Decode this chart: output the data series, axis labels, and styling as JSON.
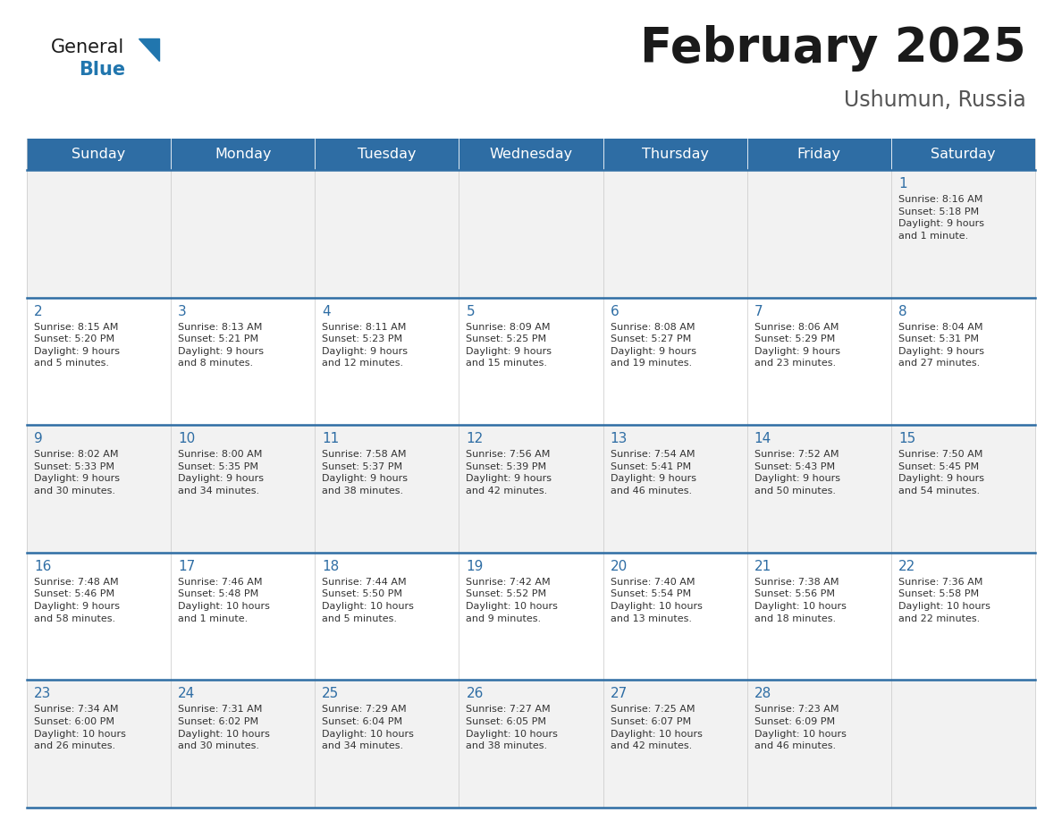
{
  "title": "February 2025",
  "subtitle": "Ushumun, Russia",
  "header_color": "#2E6DA4",
  "header_text_color": "#FFFFFF",
  "days_of_week": [
    "Sunday",
    "Monday",
    "Tuesday",
    "Wednesday",
    "Thursday",
    "Friday",
    "Saturday"
  ],
  "background_color": "#FFFFFF",
  "cell_bg_row0": "#F2F2F2",
  "cell_bg_row1": "#FFFFFF",
  "cell_bg_row2": "#F2F2F2",
  "cell_bg_row3": "#FFFFFF",
  "cell_bg_row4": "#F2F2F2",
  "separator_color": "#2E6DA4",
  "day_number_color": "#2E6DA4",
  "text_color": "#333333",
  "title_color": "#1a1a1a",
  "subtitle_color": "#555555",
  "logo_general_color": "#1a1a1a",
  "logo_blue_color": "#2176AE",
  "calendar": [
    [
      {
        "day": null,
        "info": null
      },
      {
        "day": null,
        "info": null
      },
      {
        "day": null,
        "info": null
      },
      {
        "day": null,
        "info": null
      },
      {
        "day": null,
        "info": null
      },
      {
        "day": null,
        "info": null
      },
      {
        "day": "1",
        "info": "Sunrise: 8:16 AM\nSunset: 5:18 PM\nDaylight: 9 hours\nand 1 minute."
      }
    ],
    [
      {
        "day": "2",
        "info": "Sunrise: 8:15 AM\nSunset: 5:20 PM\nDaylight: 9 hours\nand 5 minutes."
      },
      {
        "day": "3",
        "info": "Sunrise: 8:13 AM\nSunset: 5:21 PM\nDaylight: 9 hours\nand 8 minutes."
      },
      {
        "day": "4",
        "info": "Sunrise: 8:11 AM\nSunset: 5:23 PM\nDaylight: 9 hours\nand 12 minutes."
      },
      {
        "day": "5",
        "info": "Sunrise: 8:09 AM\nSunset: 5:25 PM\nDaylight: 9 hours\nand 15 minutes."
      },
      {
        "day": "6",
        "info": "Sunrise: 8:08 AM\nSunset: 5:27 PM\nDaylight: 9 hours\nand 19 minutes."
      },
      {
        "day": "7",
        "info": "Sunrise: 8:06 AM\nSunset: 5:29 PM\nDaylight: 9 hours\nand 23 minutes."
      },
      {
        "day": "8",
        "info": "Sunrise: 8:04 AM\nSunset: 5:31 PM\nDaylight: 9 hours\nand 27 minutes."
      }
    ],
    [
      {
        "day": "9",
        "info": "Sunrise: 8:02 AM\nSunset: 5:33 PM\nDaylight: 9 hours\nand 30 minutes."
      },
      {
        "day": "10",
        "info": "Sunrise: 8:00 AM\nSunset: 5:35 PM\nDaylight: 9 hours\nand 34 minutes."
      },
      {
        "day": "11",
        "info": "Sunrise: 7:58 AM\nSunset: 5:37 PM\nDaylight: 9 hours\nand 38 minutes."
      },
      {
        "day": "12",
        "info": "Sunrise: 7:56 AM\nSunset: 5:39 PM\nDaylight: 9 hours\nand 42 minutes."
      },
      {
        "day": "13",
        "info": "Sunrise: 7:54 AM\nSunset: 5:41 PM\nDaylight: 9 hours\nand 46 minutes."
      },
      {
        "day": "14",
        "info": "Sunrise: 7:52 AM\nSunset: 5:43 PM\nDaylight: 9 hours\nand 50 minutes."
      },
      {
        "day": "15",
        "info": "Sunrise: 7:50 AM\nSunset: 5:45 PM\nDaylight: 9 hours\nand 54 minutes."
      }
    ],
    [
      {
        "day": "16",
        "info": "Sunrise: 7:48 AM\nSunset: 5:46 PM\nDaylight: 9 hours\nand 58 minutes."
      },
      {
        "day": "17",
        "info": "Sunrise: 7:46 AM\nSunset: 5:48 PM\nDaylight: 10 hours\nand 1 minute."
      },
      {
        "day": "18",
        "info": "Sunrise: 7:44 AM\nSunset: 5:50 PM\nDaylight: 10 hours\nand 5 minutes."
      },
      {
        "day": "19",
        "info": "Sunrise: 7:42 AM\nSunset: 5:52 PM\nDaylight: 10 hours\nand 9 minutes."
      },
      {
        "day": "20",
        "info": "Sunrise: 7:40 AM\nSunset: 5:54 PM\nDaylight: 10 hours\nand 13 minutes."
      },
      {
        "day": "21",
        "info": "Sunrise: 7:38 AM\nSunset: 5:56 PM\nDaylight: 10 hours\nand 18 minutes."
      },
      {
        "day": "22",
        "info": "Sunrise: 7:36 AM\nSunset: 5:58 PM\nDaylight: 10 hours\nand 22 minutes."
      }
    ],
    [
      {
        "day": "23",
        "info": "Sunrise: 7:34 AM\nSunset: 6:00 PM\nDaylight: 10 hours\nand 26 minutes."
      },
      {
        "day": "24",
        "info": "Sunrise: 7:31 AM\nSunset: 6:02 PM\nDaylight: 10 hours\nand 30 minutes."
      },
      {
        "day": "25",
        "info": "Sunrise: 7:29 AM\nSunset: 6:04 PM\nDaylight: 10 hours\nand 34 minutes."
      },
      {
        "day": "26",
        "info": "Sunrise: 7:27 AM\nSunset: 6:05 PM\nDaylight: 10 hours\nand 38 minutes."
      },
      {
        "day": "27",
        "info": "Sunrise: 7:25 AM\nSunset: 6:07 PM\nDaylight: 10 hours\nand 42 minutes."
      },
      {
        "day": "28",
        "info": "Sunrise: 7:23 AM\nSunset: 6:09 PM\nDaylight: 10 hours\nand 46 minutes."
      },
      {
        "day": null,
        "info": null
      }
    ]
  ]
}
